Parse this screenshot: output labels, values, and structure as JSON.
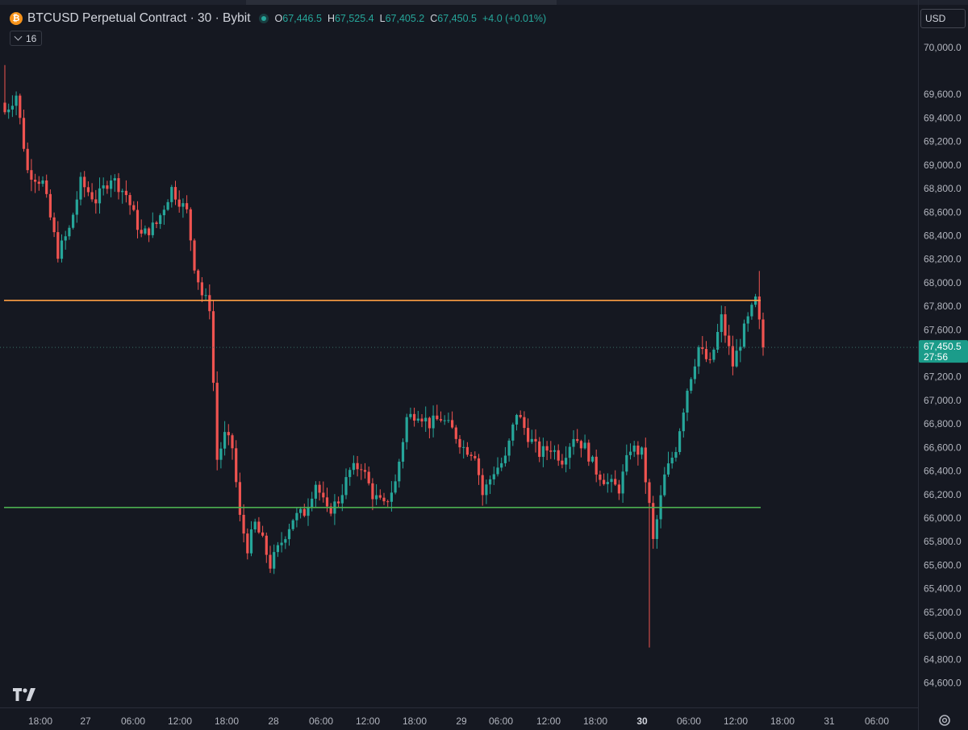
{
  "header": {
    "title": "BTCUSD Perpetual Contract · 30 · Bybit",
    "icon": "bitcoin-icon",
    "ohlc": {
      "o_label": "O",
      "o": "67,446.5",
      "h_label": "H",
      "h": "67,525.4",
      "l_label": "L",
      "l": "67,405.2",
      "c_label": "C",
      "c": "67,450.5",
      "change": "+4.0 (+0.01%)"
    },
    "indicators_count": "16"
  },
  "currency": "USD",
  "price_label": {
    "value": "67,450.5",
    "countdown": "27:56"
  },
  "colors": {
    "up": "#26a69a",
    "down": "#ef5350",
    "resistance": "#ff9f43",
    "support": "#4caf50",
    "background": "#151821"
  },
  "chart_data": {
    "type": "candlestick",
    "y_ticks": [
      "64,600.0",
      "64,800.0",
      "65,000.0",
      "65,200.0",
      "65,400.0",
      "65,600.0",
      "65,800.0",
      "66,000.0",
      "66,200.0",
      "66,400.0",
      "66,600.0",
      "66,800.0",
      "67,000.0",
      "67,200.0",
      "67,600.0",
      "67,800.0",
      "68,000.0",
      "68,200.0",
      "68,400.0",
      "68,600.0",
      "68,800.0",
      "69,000.0",
      "69,200.0",
      "69,400.0",
      "69,600.0",
      "70,000.0"
    ],
    "y_tick_values": [
      64600,
      64800,
      65000,
      65200,
      65400,
      65600,
      65800,
      66000,
      66200,
      66400,
      66600,
      66800,
      67000,
      67200,
      67600,
      67800,
      68000,
      68200,
      68400,
      68600,
      68800,
      69000,
      69200,
      69400,
      69600,
      70000
    ],
    "x_ticks": [
      "18:00",
      "27",
      "06:00",
      "12:00",
      "18:00",
      "28",
      "06:00",
      "12:00",
      "18:00",
      "29",
      "06:00",
      "12:00",
      "18:00",
      "30",
      "06:00",
      "12:00",
      "18:00",
      "31",
      "06:00"
    ],
    "x_tick_bold": [
      "30"
    ],
    "x_range_bars": [
      -24,
      180
    ],
    "current_price": 67450.5,
    "horizontal_lines": [
      {
        "price": 67850,
        "color": "#ff9f43"
      },
      {
        "price": 66090,
        "color": "#4caf50"
      }
    ],
    "waypoints": [
      [
        0,
        69450
      ],
      [
        3,
        69600
      ],
      [
        6,
        68950
      ],
      [
        10,
        68850
      ],
      [
        14,
        68250
      ],
      [
        17,
        68450
      ],
      [
        20,
        68850
      ],
      [
        24,
        68700
      ],
      [
        28,
        68900
      ],
      [
        32,
        68750
      ],
      [
        36,
        68400
      ],
      [
        40,
        68500
      ],
      [
        44,
        68800
      ],
      [
        48,
        68600
      ],
      [
        50,
        68150
      ],
      [
        52,
        67900
      ],
      [
        54,
        67800
      ],
      [
        56,
        66500
      ],
      [
        58,
        66700
      ],
      [
        60,
        66600
      ],
      [
        62,
        66000
      ],
      [
        64,
        65750
      ],
      [
        66,
        65950
      ],
      [
        68,
        65800
      ],
      [
        70,
        65600
      ],
      [
        73,
        65800
      ],
      [
        76,
        66000
      ],
      [
        79,
        66050
      ],
      [
        82,
        66300
      ],
      [
        85,
        66050
      ],
      [
        88,
        66150
      ],
      [
        91,
        66400
      ],
      [
        94,
        66450
      ],
      [
        97,
        66200
      ],
      [
        100,
        66100
      ],
      [
        103,
        66300
      ],
      [
        106,
        66850
      ],
      [
        109,
        66900
      ],
      [
        112,
        66800
      ],
      [
        115,
        66850
      ],
      [
        118,
        66750
      ],
      [
        121,
        66600
      ],
      [
        124,
        66550
      ],
      [
        126,
        66200
      ],
      [
        129,
        66400
      ],
      [
        132,
        66500
      ],
      [
        135,
        66900
      ],
      [
        138,
        66700
      ],
      [
        141,
        66550
      ],
      [
        144,
        66600
      ],
      [
        147,
        66500
      ],
      [
        150,
        66700
      ],
      [
        153,
        66600
      ],
      [
        156,
        66400
      ],
      [
        159,
        66300
      ],
      [
        162,
        66250
      ],
      [
        165,
        66600
      ],
      [
        168,
        66550
      ],
      [
        170,
        66100
      ],
      [
        171,
        65800
      ],
      [
        174,
        66350
      ],
      [
        177,
        66600
      ],
      [
        180,
        67100
      ],
      [
        183,
        67450
      ],
      [
        186,
        67300
      ],
      [
        189,
        67700
      ],
      [
        192,
        67300
      ],
      [
        195,
        67600
      ],
      [
        198,
        67850
      ],
      [
        200,
        67450
      ]
    ],
    "wick_extremes": [
      {
        "bar": 0,
        "high": 69850
      },
      {
        "bar": 170,
        "low": 64900
      },
      {
        "bar": 199,
        "high": 68100
      }
    ],
    "seed": 7
  }
}
